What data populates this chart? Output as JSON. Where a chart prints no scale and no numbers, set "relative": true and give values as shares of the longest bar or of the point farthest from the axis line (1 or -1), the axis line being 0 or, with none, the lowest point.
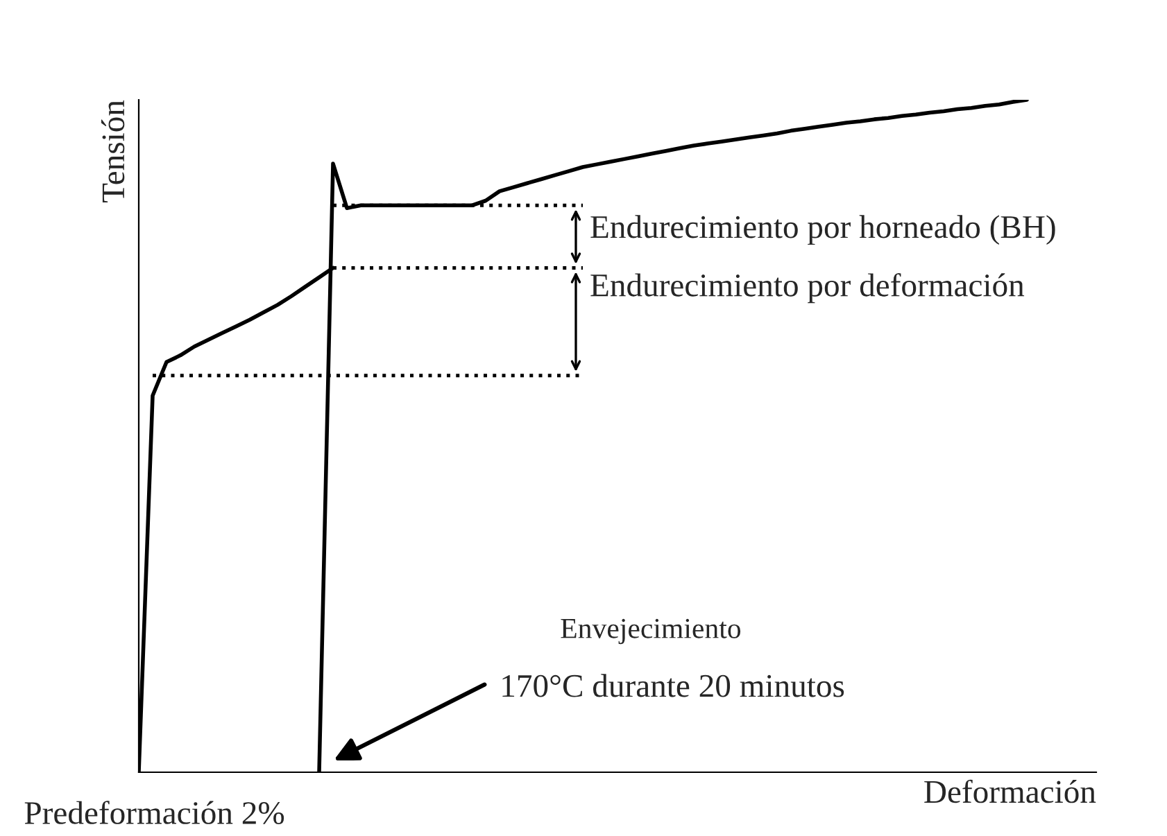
{
  "chart_data": {
    "type": "line",
    "relative": true,
    "xlabel": "Deformación",
    "ylabel": "Tensión",
    "tick_labels": false,
    "line_style": "solid",
    "categories": [
      null,
      null,
      null,
      null,
      null,
      null,
      null,
      null,
      null,
      null,
      null,
      null,
      null,
      null,
      null,
      null,
      null,
      null,
      null,
      null,
      null,
      null,
      null,
      null,
      null,
      null,
      null,
      null,
      null,
      null,
      null,
      null,
      null,
      null,
      null,
      null,
      null,
      null,
      null,
      null,
      null,
      null,
      null,
      null,
      null,
      null,
      null,
      null,
      null,
      null,
      null,
      null,
      null,
      null,
      null,
      null,
      null,
      null,
      null,
      null,
      null,
      null,
      null,
      null,
      null,
      null,
      null,
      null,
      null,
      null
    ],
    "series": [
      {
        "color": "#000000",
        "values": [
          0,
          0.56,
          0.61,
          0.62,
          0.633,
          0.643,
          0.653,
          0.663,
          0.673,
          0.684,
          0.695,
          0.708,
          0.722,
          0.736,
          0.75,
          null,
          null,
          null,
          null,
          null,
          null,
          null,
          null,
          null,
          null,
          null,
          null,
          null,
          null,
          null,
          null,
          null,
          null,
          null,
          null,
          null,
          null,
          null,
          null,
          null,
          null,
          null,
          null,
          null,
          null,
          null,
          null,
          null,
          null,
          null,
          null,
          null,
          null,
          null,
          null,
          null,
          null,
          null,
          null,
          null,
          null,
          null,
          null,
          null,
          null,
          null,
          null,
          null,
          null,
          null
        ]
      },
      {
        "color": "#000000",
        "values": [
          null,
          null,
          null,
          null,
          null,
          null,
          null,
          null,
          null,
          null,
          null,
          null,
          null,
          0,
          0.905,
          0.839,
          0.843,
          0.843,
          0.843,
          0.843,
          0.843,
          0.843,
          0.843,
          0.843,
          0.843,
          0.85,
          0.864,
          0.87,
          0.876,
          0.882,
          0.888,
          0.894,
          0.9,
          0.904,
          0.908,
          0.912,
          0.916,
          0.92,
          0.924,
          0.928,
          0.932,
          0.935,
          0.938,
          0.941,
          0.944,
          0.947,
          0.95,
          0.954,
          0.957,
          0.96,
          0.963,
          0.966,
          0.968,
          0.971,
          0.973,
          0.976,
          0.978,
          0.981,
          0.983,
          0.986,
          0.988,
          0.991,
          0.993,
          0.997,
          1.0,
          null,
          null,
          null,
          null,
          null
        ]
      },
      {
        "color": "#000000",
        "line_style": "dotted",
        "values": [
          null,
          null,
          null,
          null,
          null,
          null,
          null,
          null,
          null,
          null,
          null,
          null,
          null,
          null,
          0.843,
          0.843,
          0.843,
          0.843,
          0.843,
          0.843,
          0.843,
          0.843,
          0.843,
          0.843,
          0.843,
          0.843,
          0.843,
          0.843,
          0.843,
          0.843,
          0.843,
          0.843,
          0.843,
          null,
          null,
          null,
          null,
          null,
          null,
          null,
          null,
          null,
          null,
          null,
          null,
          null,
          null,
          null,
          null,
          null,
          null,
          null,
          null,
          null,
          null,
          null,
          null,
          null,
          null,
          null,
          null,
          null,
          null,
          null,
          null,
          null,
          null,
          null,
          null,
          null
        ]
      },
      {
        "color": "#000000",
        "line_style": "dotted",
        "values": [
          null,
          null,
          null,
          null,
          null,
          null,
          null,
          null,
          null,
          null,
          null,
          null,
          null,
          null,
          0.75,
          0.75,
          0.75,
          0.75,
          0.75,
          0.75,
          0.75,
          0.75,
          0.75,
          0.75,
          0.75,
          0.75,
          0.75,
          0.75,
          0.75,
          0.75,
          0.75,
          0.75,
          0.75,
          null,
          null,
          null,
          null,
          null,
          null,
          null,
          null,
          null,
          null,
          null,
          null,
          null,
          null,
          null,
          null,
          null,
          null,
          null,
          null,
          null,
          null,
          null,
          null,
          null,
          null,
          null,
          null,
          null,
          null,
          null,
          null,
          null,
          null,
          null,
          null,
          null
        ]
      },
      {
        "color": "#000000",
        "line_style": "dotted",
        "values": [
          null,
          0.59,
          0.59,
          0.59,
          0.59,
          0.59,
          0.59,
          0.59,
          0.59,
          0.59,
          0.59,
          0.59,
          0.59,
          0.59,
          0.59,
          0.59,
          0.59,
          0.59,
          0.59,
          0.59,
          0.59,
          0.59,
          0.59,
          0.59,
          0.59,
          0.59,
          0.59,
          0.59,
          0.59,
          0.59,
          0.59,
          0.59,
          0.59,
          null,
          null,
          null,
          null,
          null,
          null,
          null,
          null,
          null,
          null,
          null,
          null,
          null,
          null,
          null,
          null,
          null,
          null,
          null,
          null,
          null,
          null,
          null,
          null,
          null,
          null,
          null,
          null,
          null,
          null,
          null,
          null,
          null,
          null,
          null,
          null,
          null
        ]
      }
    ],
    "annotations": [
      "Endurecimiento por horneado (BH)",
      "Endurecimiento por deformación",
      "Envejecimiento",
      "170°C durante 20 minutos",
      "Predeformación 2%"
    ]
  }
}
